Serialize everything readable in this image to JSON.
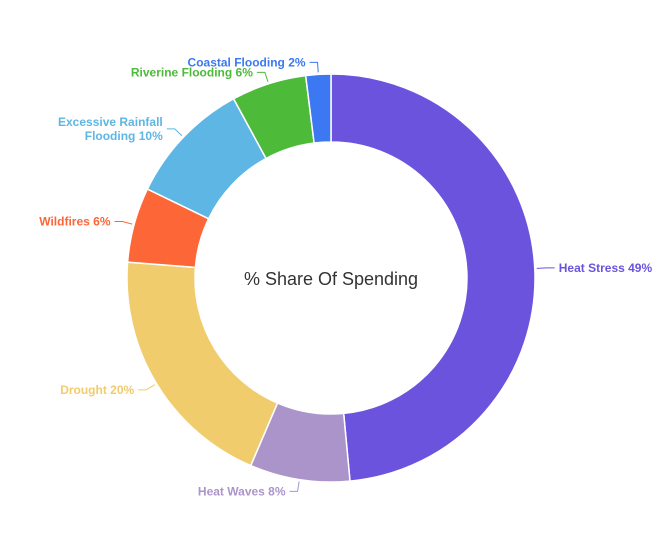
{
  "chart_data": {
    "type": "pie",
    "variant": "donut",
    "center_label": "% Share Of Spending",
    "unit": "%",
    "slices": [
      {
        "label": "Heat Stress",
        "value": 49,
        "color": "#6c53dd"
      },
      {
        "label": "Heat Waves",
        "value": 8,
        "color": "#ab94ca"
      },
      {
        "label": "Drought",
        "value": 20,
        "color": "#f0cc6d"
      },
      {
        "label": "Wildfires",
        "value": 6,
        "color": "#fd6636"
      },
      {
        "label": "Excessive Rainfall Flooding",
        "value": 10,
        "color": "#5eb6e5"
      },
      {
        "label": "Riverine Flooding",
        "value": 6,
        "color": "#4dba3a"
      },
      {
        "label": "Coastal Flooding",
        "value": 2,
        "color": "#3b78f1"
      }
    ],
    "legend": "none",
    "labels": "outside-with-leader-lines"
  }
}
